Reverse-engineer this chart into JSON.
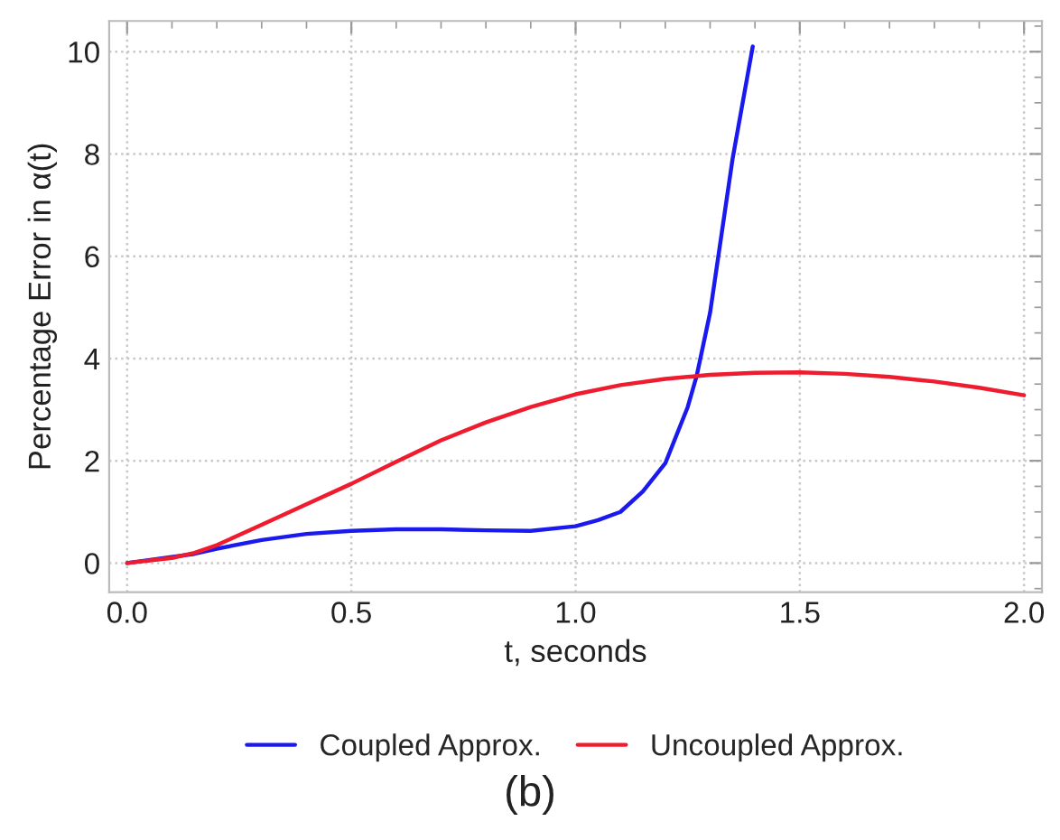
{
  "chart_data": {
    "type": "line",
    "xlabel": "t, seconds",
    "ylabel": "Percentage Error in α(t)",
    "xlim": [
      -0.04,
      2.04
    ],
    "ylim": [
      -0.57,
      10.6
    ],
    "xticks": [
      {
        "value": 0,
        "label": "0.0"
      },
      0.5,
      {
        "value": 1,
        "label": "1.0"
      },
      1.5,
      {
        "value": 2,
        "label": "2.0"
      }
    ],
    "yticks": [
      0,
      2,
      4,
      6,
      8,
      10
    ],
    "grid": true,
    "legend": "bottom",
    "line_style": "solid",
    "marker": "none",
    "annotations": [
      "(b)"
    ],
    "series": [
      {
        "name": "Coupled Approx.",
        "color": "#1a1aee",
        "x": [
          0,
          0.15,
          0.2,
          0.3,
          0.4,
          0.5,
          0.6,
          0.7,
          0.8,
          0.9,
          1.0,
          1.05,
          1.1,
          1.15,
          1.2,
          1.25,
          1.27,
          1.3,
          1.31,
          1.35,
          1.395
        ],
        "values": [
          0,
          0.18,
          0.28,
          0.45,
          0.57,
          0.63,
          0.66,
          0.66,
          0.64,
          0.63,
          0.72,
          0.84,
          1.0,
          1.4,
          1.95,
          3.05,
          3.66,
          4.9,
          5.5,
          7.9,
          10.1
        ]
      },
      {
        "name": "Uncoupled Approx.",
        "color": "#ee1c2e",
        "x": [
          0,
          0.1,
          0.15,
          0.2,
          0.25,
          0.3,
          0.4,
          0.5,
          0.6,
          0.7,
          0.8,
          0.9,
          1.0,
          1.1,
          1.2,
          1.3,
          1.4,
          1.5,
          1.6,
          1.7,
          1.8,
          1.9,
          2.0
        ],
        "values": [
          0,
          0.1,
          0.2,
          0.35,
          0.55,
          0.75,
          1.15,
          1.55,
          1.98,
          2.4,
          2.75,
          3.05,
          3.3,
          3.48,
          3.6,
          3.68,
          3.72,
          3.73,
          3.7,
          3.64,
          3.55,
          3.43,
          3.28
        ]
      }
    ]
  }
}
